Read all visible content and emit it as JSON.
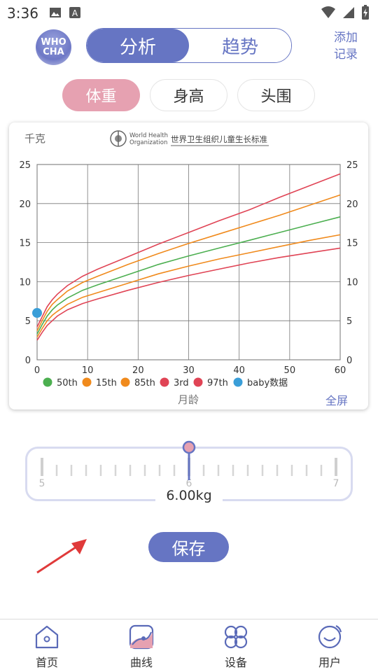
{
  "status_bar": {
    "time": "3:36"
  },
  "header": {
    "logo_line1": "WHO",
    "logo_line2": "CHA",
    "segment_analysis": "分析",
    "segment_trend": "趋势",
    "add_record_line1": "添加",
    "add_record_line2": "记录"
  },
  "tabs": {
    "weight": "体重",
    "height": "身高",
    "head": "头围"
  },
  "chart": {
    "unit_label": "千克",
    "who_line1": "World Health",
    "who_line2": "Organization",
    "who_standard": "世界卫生组织儿童生长标准",
    "fullscreen": "全屏"
  },
  "chart_data": {
    "type": "line",
    "xlabel": "月龄",
    "ylabel": "千克",
    "xlim": [
      0,
      60
    ],
    "ylim": [
      0,
      25
    ],
    "x_ticks": [
      0,
      10,
      20,
      30,
      40,
      50,
      60
    ],
    "y_ticks": [
      0,
      5,
      10,
      15,
      20,
      25
    ],
    "grid": true,
    "legend_position": "bottom",
    "x": [
      0,
      1,
      2,
      3,
      4,
      6,
      9,
      12,
      18,
      24,
      30,
      36,
      42,
      48,
      54,
      60
    ],
    "series": [
      {
        "name": "50th",
        "color": "#4caf50",
        "values": [
          3.3,
          4.5,
          5.6,
          6.4,
          7.0,
          7.9,
          8.9,
          9.6,
          10.9,
          12.2,
          13.3,
          14.3,
          15.3,
          16.3,
          17.3,
          18.3
        ]
      },
      {
        "name": "15th",
        "color": "#f08a1c",
        "values": [
          2.9,
          4.0,
          5.0,
          5.7,
          6.2,
          7.1,
          8.0,
          8.6,
          9.8,
          11.0,
          12.0,
          12.9,
          13.7,
          14.5,
          15.3,
          16.0
        ]
      },
      {
        "name": "85th",
        "color": "#f08a1c",
        "values": [
          3.7,
          5.0,
          6.2,
          7.1,
          7.7,
          8.8,
          9.9,
          10.7,
          12.2,
          13.6,
          14.9,
          16.1,
          17.3,
          18.5,
          19.8,
          21.1
        ]
      },
      {
        "name": "3rd",
        "color": "#e04455",
        "values": [
          2.5,
          3.5,
          4.4,
          5.0,
          5.6,
          6.4,
          7.2,
          7.8,
          8.9,
          9.9,
          10.8,
          11.6,
          12.4,
          13.1,
          13.7,
          14.3
        ]
      },
      {
        "name": "97th",
        "color": "#e04455",
        "values": [
          4.2,
          5.5,
          6.8,
          7.7,
          8.4,
          9.5,
          10.7,
          11.6,
          13.2,
          14.8,
          16.3,
          17.8,
          19.2,
          20.8,
          22.3,
          23.8
        ]
      }
    ],
    "baby_series": {
      "name": "baby数据",
      "color": "#3a9ed8",
      "x": [
        0
      ],
      "values": [
        6.0
      ]
    }
  },
  "scale": {
    "left_value": "5",
    "center_value": "6",
    "right_value": "7",
    "current": "6.00kg"
  },
  "save_label": "保存",
  "nav": [
    {
      "label": "首页"
    },
    {
      "label": "曲线"
    },
    {
      "label": "设备"
    },
    {
      "label": "用户"
    }
  ]
}
